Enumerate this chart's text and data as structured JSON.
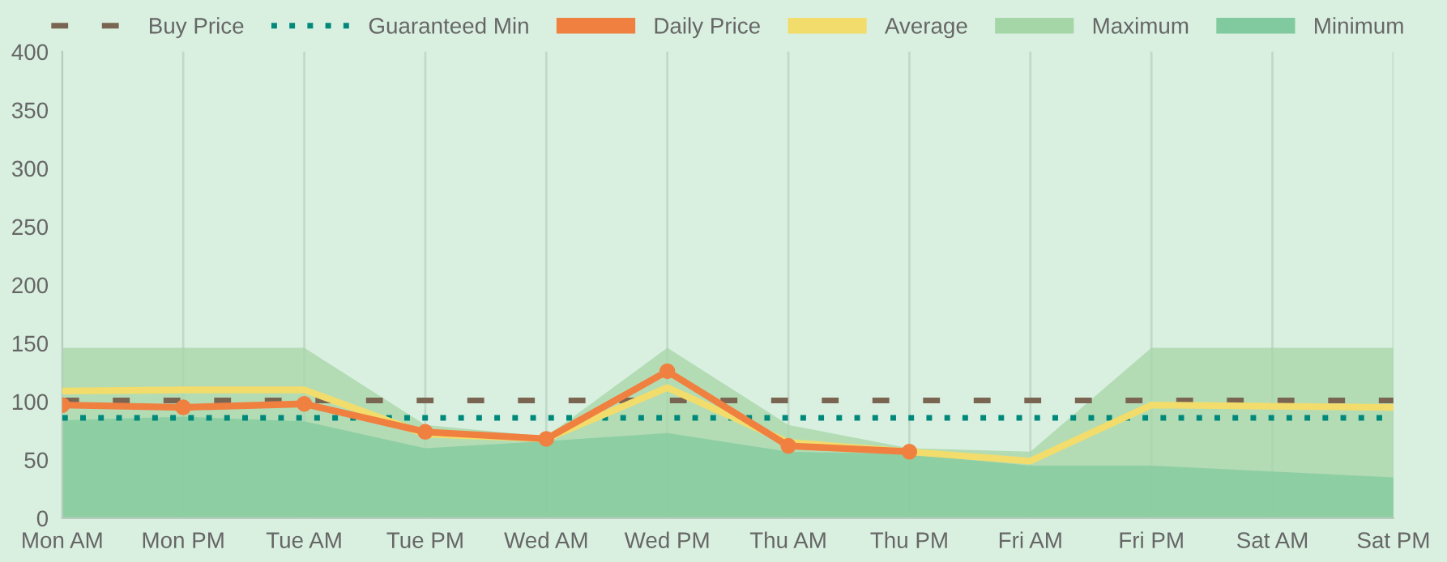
{
  "chart_data": {
    "type": "line",
    "categories": [
      "Mon AM",
      "Mon PM",
      "Tue AM",
      "Tue PM",
      "Wed AM",
      "Wed PM",
      "Thu AM",
      "Thu PM",
      "Fri AM",
      "Fri PM",
      "Sat AM",
      "Sat PM"
    ],
    "ylim": [
      0,
      400
    ],
    "yticks": [
      0,
      50,
      100,
      150,
      200,
      250,
      300,
      350,
      400
    ],
    "grid": "x",
    "legend": "top",
    "series": [
      {
        "name": "Buy Price",
        "color": "#7a6552",
        "line_style": "dashed",
        "marker": "none",
        "values": [
          101,
          101,
          101,
          101,
          101,
          101,
          101,
          101,
          101,
          101,
          101,
          101
        ]
      },
      {
        "name": "Guaranteed Min",
        "color": "#00897b",
        "line_style": "dotted",
        "marker": "none",
        "values": [
          86,
          86,
          86,
          86,
          86,
          86,
          86,
          86,
          86,
          86,
          86,
          86
        ]
      },
      {
        "name": "Daily Price",
        "color": "#f08040",
        "line_style": "solid",
        "marker": "circle",
        "values": [
          97,
          95,
          98,
          74,
          68,
          126,
          62,
          57,
          null,
          null,
          null,
          null
        ]
      },
      {
        "name": "Average",
        "color": "#f2dc6b",
        "line_style": "solid",
        "marker": "none",
        "values": [
          109,
          110,
          110,
          72,
          68,
          112,
          65,
          57,
          49,
          97,
          96,
          95
        ]
      },
      {
        "name": "Maximum",
        "type": "area",
        "color": "#a5d6a7",
        "values": [
          146,
          146,
          146,
          80,
          70,
          146,
          80,
          60,
          57,
          146,
          146,
          146
        ]
      },
      {
        "name": "Minimum",
        "type": "area",
        "color": "#81c99e",
        "values": [
          84,
          87,
          83,
          60,
          66,
          73,
          57,
          55,
          45,
          45,
          40,
          35
        ]
      }
    ]
  }
}
